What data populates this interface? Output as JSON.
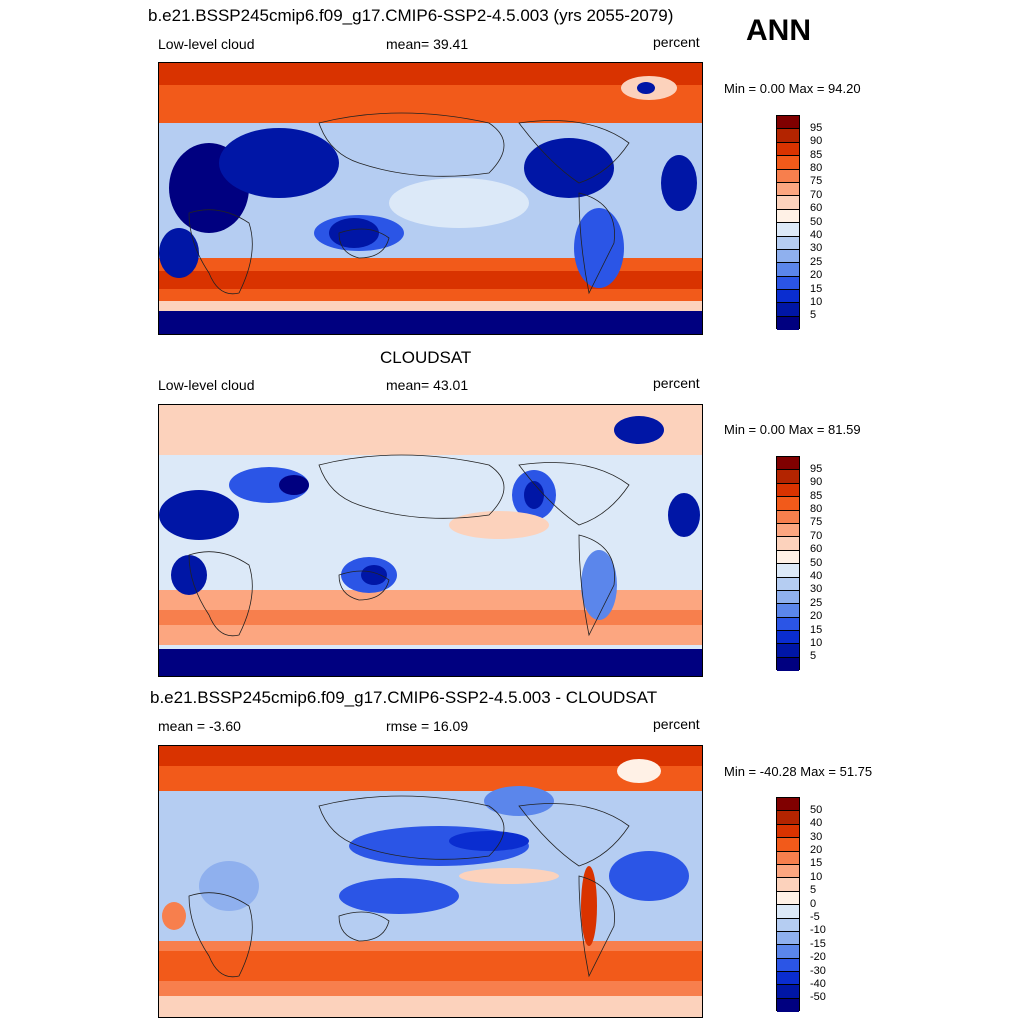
{
  "header": {
    "season": "ANN"
  },
  "panels": [
    {
      "title": "b.e21.BSSP245cmip6.f09_g17.CMIP6-SSP2-4.5.003 (yrs 2055-2079)",
      "left_label": "Low-level cloud",
      "center_label": "mean=  39.41",
      "right_label": "percent",
      "minmax": "Min =    0.00 Max =  94.20",
      "colorbar_ticks": [
        "95",
        "90",
        "85",
        "80",
        "75",
        "70",
        "60",
        "50",
        "40",
        "30",
        "25",
        "20",
        "15",
        "10",
        "5"
      ]
    },
    {
      "title": "CLOUDSAT",
      "left_label": "Low-level cloud",
      "center_label": "mean=  43.01",
      "right_label": "percent",
      "minmax": "Min =    0.00 Max =  81.59",
      "colorbar_ticks": [
        "95",
        "90",
        "85",
        "80",
        "75",
        "70",
        "60",
        "50",
        "40",
        "30",
        "25",
        "20",
        "15",
        "10",
        "5"
      ]
    },
    {
      "title": "b.e21.BSSP245cmip6.f09_g17.CMIP6-SSP2-4.5.003 - CLOUDSAT",
      "left_label": "mean =  -3.60",
      "center_label": "rmse =  16.09",
      "right_label": "percent",
      "minmax": "Min = -40.28 Max =  51.75",
      "colorbar_ticks": [
        "50",
        "40",
        "30",
        "20",
        "15",
        "10",
        "5",
        "0",
        "-5",
        "-10",
        "-15",
        "-20",
        "-30",
        "-40",
        "-50"
      ]
    }
  ],
  "colors": {
    "colorbar": [
      "#800000",
      "#b32400",
      "#d93300",
      "#f25a1a",
      "#f77f4d",
      "#fca680",
      "#fcd2bc",
      "#fff1e6",
      "#dce9f8",
      "#b5cdf2",
      "#8fb0ee",
      "#5b86eb",
      "#2b55e6",
      "#0a2dd0",
      "#0016a6",
      "#000080"
    ]
  }
}
